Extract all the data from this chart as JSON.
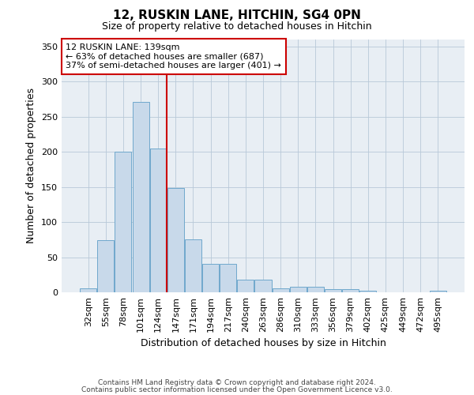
{
  "title1": "12, RUSKIN LANE, HITCHIN, SG4 0PN",
  "title2": "Size of property relative to detached houses in Hitchin",
  "xlabel": "Distribution of detached houses by size in Hitchin",
  "ylabel": "Number of detached properties",
  "bin_labels": [
    "32sqm",
    "55sqm",
    "78sqm",
    "101sqm",
    "124sqm",
    "147sqm",
    "171sqm",
    "194sqm",
    "217sqm",
    "240sqm",
    "263sqm",
    "286sqm",
    "310sqm",
    "333sqm",
    "356sqm",
    "379sqm",
    "402sqm",
    "425sqm",
    "449sqm",
    "472sqm",
    "495sqm"
  ],
  "bar_heights": [
    6,
    74,
    200,
    271,
    205,
    148,
    75,
    40,
    40,
    18,
    18,
    6,
    8,
    8,
    5,
    4,
    2,
    0,
    0,
    0,
    2
  ],
  "bar_color": "#c8d9ea",
  "bar_edge_color": "#6fa8cc",
  "property_line_color": "#cc0000",
  "property_line_xindex": 4.48,
  "annotation_line1": "12 RUSKIN LANE: 139sqm",
  "annotation_line2": "← 63% of detached houses are smaller (687)",
  "annotation_line3": "37% of semi-detached houses are larger (401) →",
  "annotation_box_color": "#ffffff",
  "annotation_box_edge": "#cc0000",
  "footer1": "Contains HM Land Registry data © Crown copyright and database right 2024.",
  "footer2": "Contains public sector information licensed under the Open Government Licence v3.0.",
  "plot_bg_color": "#e8eef4",
  "ylim": [
    0,
    360
  ],
  "yticks": [
    0,
    50,
    100,
    150,
    200,
    250,
    300,
    350
  ],
  "title1_fontsize": 11,
  "title2_fontsize": 9,
  "annot_fontsize": 8,
  "tick_fontsize": 8,
  "ylabel_fontsize": 9,
  "xlabel_fontsize": 9
}
